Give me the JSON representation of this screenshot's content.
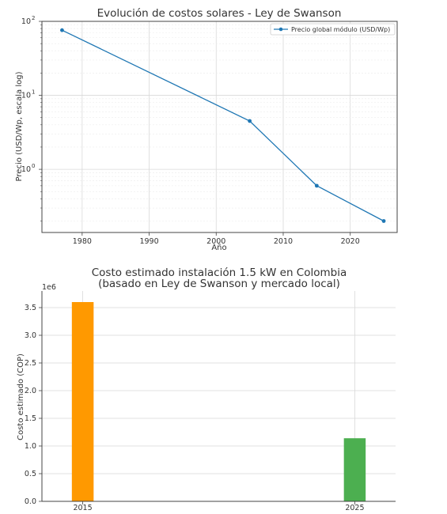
{
  "chart_data": [
    {
      "type": "line",
      "title": "Evolución de costos solares - Ley de Swanson",
      "xlabel": "Año",
      "ylabel": "Precio (USD/Wp, escala log)",
      "yscale": "log",
      "xlim": [
        1974,
        2027
      ],
      "ylim": [
        0.14,
        100
      ],
      "xticks": [
        1980,
        1990,
        2000,
        2010,
        2020
      ],
      "yticks": [
        {
          "value": 100,
          "mant": "10",
          "exp": "2"
        },
        {
          "value": 10,
          "mant": "10",
          "exp": "1"
        },
        {
          "value": 1,
          "mant": "10",
          "exp": "0"
        }
      ],
      "grid": true,
      "legend_position": "top-right",
      "series": [
        {
          "name": "Precio global módulo (USD/Wp)",
          "color": "#1f77b4",
          "x": [
            1977,
            2005,
            2015,
            2025
          ],
          "y": [
            76,
            4.5,
            0.6,
            0.2
          ]
        }
      ]
    },
    {
      "type": "bar",
      "title_lines": [
        "Costo estimado instalación 1.5 kW en Colombia",
        "(basado en Ley de Swanson y mercado local)"
      ],
      "xlabel": "",
      "ylabel": "Costo estimado (COP)",
      "offset_label": "1e6",
      "ylim": [
        0,
        3.8
      ],
      "yticks": [
        "0.0",
        "0.5",
        "1.0",
        "1.5",
        "2.0",
        "2.5",
        "3.0",
        "3.5"
      ],
      "xlim": [
        2013.5,
        2026.5
      ],
      "categories": [
        "2015",
        "2025"
      ],
      "x": [
        2015,
        2025
      ],
      "values": [
        3.6,
        1.14
      ],
      "value_unit_multiplier": 1000000,
      "colors": [
        "#ff9900",
        "#4caf50"
      ],
      "grid": true
    }
  ]
}
